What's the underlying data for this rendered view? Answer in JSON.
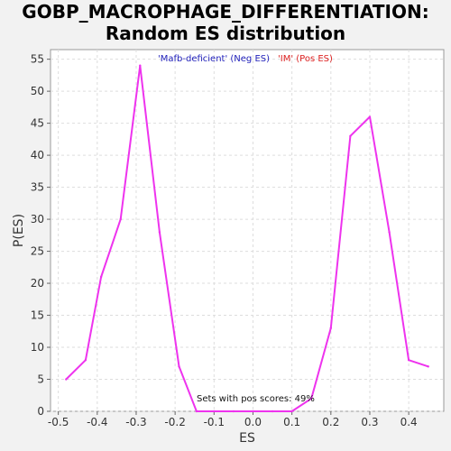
{
  "chart_data": {
    "type": "line",
    "title_line1": "GOBP_MACROPHAGE_DIFFERENTIATION:",
    "title_line2": "Random ES distribution",
    "xlabel": "ES",
    "ylabel": "P(ES)",
    "xlim": [
      -0.52,
      0.49
    ],
    "ylim": [
      0,
      56.5
    ],
    "x_ticks": [
      -0.5,
      -0.4,
      -0.3,
      -0.2,
      -0.1,
      0.0,
      0.1,
      0.2,
      0.3,
      0.4
    ],
    "x_tick_labels": [
      "-0.5",
      "-0.4",
      "-0.3",
      "-0.2",
      "-0.1",
      "0.0",
      "0.1",
      "0.2",
      "0.3",
      "0.4"
    ],
    "y_ticks": [
      0,
      5,
      10,
      15,
      20,
      25,
      30,
      35,
      40,
      45,
      50,
      55
    ],
    "y_tick_labels": [
      "0",
      "5",
      "10",
      "15",
      "20",
      "25",
      "30",
      "35",
      "40",
      "45",
      "50",
      "55"
    ],
    "grid": true,
    "legend": [
      {
        "label": "'Mafb-deficient' (Neg ES)",
        "color": "#2222bb"
      },
      {
        "label": "'IM' (Pos ES)",
        "color": "#dd2222"
      }
    ],
    "annotation": "Sets with pos scores: 49%",
    "series": [
      {
        "color": "#ee33ee",
        "x": [
          -0.48,
          -0.43,
          -0.39,
          -0.34,
          -0.29,
          -0.24,
          -0.19,
          -0.145,
          -0.1,
          -0.05,
          0.0,
          0.05,
          0.1,
          0.15,
          0.2,
          0.25,
          0.3,
          0.35,
          0.4,
          0.45
        ],
        "y": [
          5,
          8,
          21,
          30,
          54,
          28,
          7,
          0,
          0,
          0,
          0,
          0,
          0,
          2,
          13,
          43,
          46,
          28,
          8,
          7
        ]
      }
    ]
  }
}
